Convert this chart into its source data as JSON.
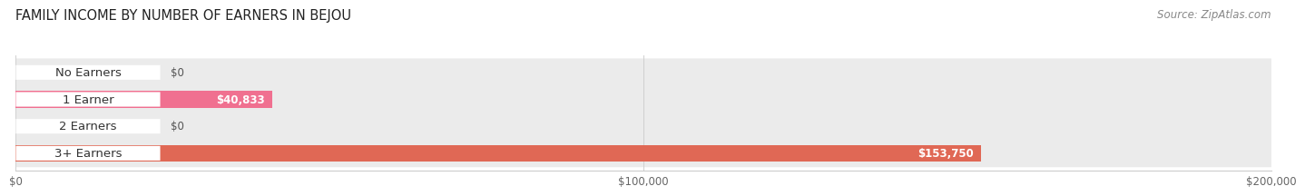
{
  "title": "FAMILY INCOME BY NUMBER OF EARNERS IN BEJOU",
  "source": "Source: ZipAtlas.com",
  "categories": [
    "No Earners",
    "1 Earner",
    "2 Earners",
    "3+ Earners"
  ],
  "values": [
    0,
    40833,
    0,
    153750
  ],
  "bar_colors": [
    "#9999cc",
    "#f07090",
    "#f0b870",
    "#e06855"
  ],
  "row_bg_color": "#ebebeb",
  "value_labels": [
    "$0",
    "$40,833",
    "$0",
    "$153,750"
  ],
  "xlim": [
    0,
    200000
  ],
  "xtick_values": [
    0,
    100000,
    200000
  ],
  "xtick_labels": [
    "$0",
    "$100,000",
    "$200,000"
  ],
  "title_fontsize": 10.5,
  "source_fontsize": 8.5,
  "label_fontsize": 9.5,
  "value_fontsize": 8.5,
  "pill_label_bg": "#ffffff",
  "pill_text_color": "#333333",
  "value_text_inside_color": "#ffffff",
  "value_text_outside_color": "#555555"
}
